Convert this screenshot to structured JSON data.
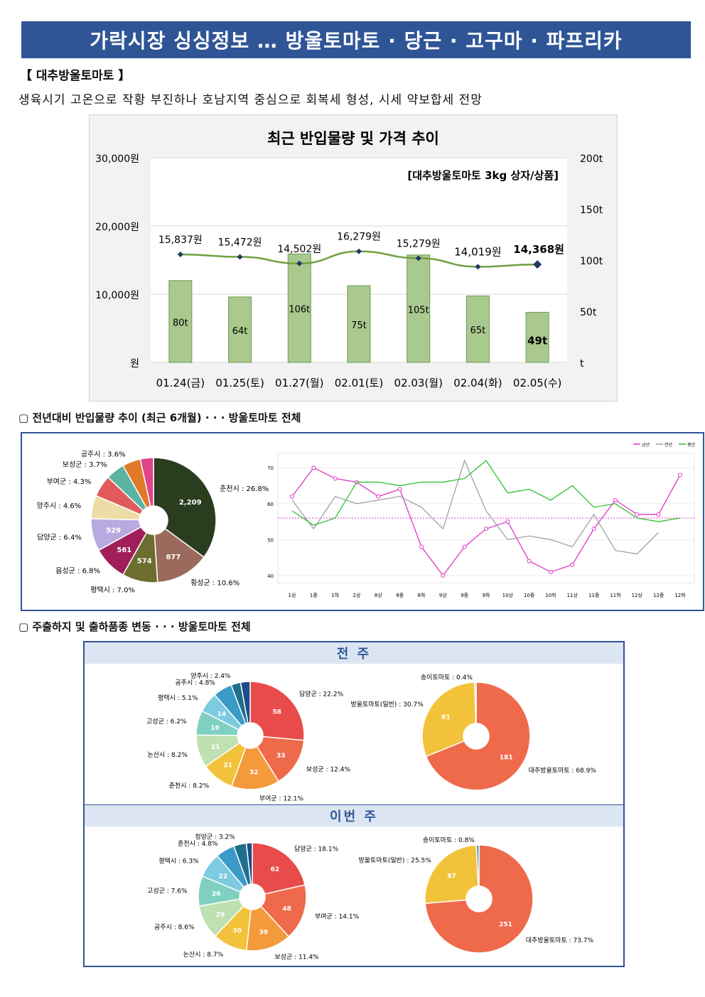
{
  "title": "가락시장 싱싱정보 … 방울토마토 · 당근 · 고구마 · 파프리카",
  "section_header": "【 대추방울토마토 】",
  "summary": "생육시기 고온으로 작황 부진하나 호남지역 중심으로 회복세 형성, 시세 약보합세 전망",
  "sub_header_1": "▢ 전년대비 반입물량 추이 (최근 6개월) · · · 방울토마토 전체",
  "sub_header_2": "▢ 주출하지 및 출하품종 변동 · · · 방울토마토 전체",
  "band_prev": "전 주",
  "band_this": "이번 주",
  "colors": {
    "accent": "#2f5597",
    "bar": "#a9c98f",
    "line": "#70a040",
    "marker": "#1f3864"
  },
  "chart_data": [
    {
      "type": "bar",
      "title": "최근 반입물량 및 가격 추이",
      "annotation": "[대추방울토마토 3kg 상자/상품]",
      "categories": [
        "01.24(금)",
        "01.25(토)",
        "01.27(월)",
        "02.01(토)",
        "02.03(월)",
        "02.04(화)",
        "02.05(수)"
      ],
      "series": [
        {
          "axis": "right",
          "values": [
            80,
            64,
            106,
            75,
            105,
            65,
            49
          ],
          "labels": [
            "80t",
            "64t",
            "106t",
            "75t",
            "105t",
            "65t",
            "49t"
          ]
        },
        {
          "axis": "left",
          "type": "line",
          "values": [
            15837,
            15472,
            14502,
            16279,
            15279,
            14019,
            14368
          ],
          "labels": [
            "15,837원",
            "15,472원",
            "14,502원",
            "16,279원",
            "15,279원",
            "14,019원",
            "14,368원"
          ]
        }
      ],
      "ylim_left": [
        0,
        30000
      ],
      "ylim_right": [
        0,
        200
      ],
      "left_ticks": [
        "30,000원",
        "20,000원",
        "10,000원",
        "원"
      ],
      "right_ticks": [
        "200t",
        "150t",
        "100t",
        "50t",
        "t"
      ]
    },
    {
      "type": "pie",
      "donut": true,
      "slices": [
        {
          "label": "춘천시 : 26.8%",
          "value": 26.8,
          "inner": "2,209",
          "color": "#2b3d1f"
        },
        {
          "label": "횡성군 : 10.6%",
          "value": 10.6,
          "inner": "877",
          "color": "#9b6a5c"
        },
        {
          "label": "평택시 : 7.0%",
          "value": 7.0,
          "inner": "574",
          "color": "#6b6e2f"
        },
        {
          "label": "음성군 : 6.8%",
          "value": 6.8,
          "inner": "561",
          "color": "#a01f5a"
        },
        {
          "label": "담양군 : 6.4%",
          "value": 6.4,
          "inner": "529",
          "color": "#b9a9e0"
        },
        {
          "label": "양주시 : 4.6%",
          "value": 4.6,
          "inner": "",
          "color": "#ecdca6"
        },
        {
          "label": "부여군 : 4.3%",
          "value": 4.3,
          "inner": "",
          "color": "#e05a5a"
        },
        {
          "label": "보성군 : 3.7%",
          "value": 3.7,
          "inner": "",
          "color": "#5ab3a0"
        },
        {
          "label": "공주시 : 3.6%",
          "value": 3.6,
          "inner": "",
          "color": "#e07a2a"
        },
        {
          "label": "",
          "value": 2.6,
          "inner": "",
          "color": "#e0458a"
        }
      ]
    },
    {
      "type": "line",
      "legend": [
        "금년",
        "전년",
        "평년"
      ],
      "categories": [
        "1상",
        "1중",
        "1하",
        "2상",
        "8상",
        "8중",
        "8하",
        "9상",
        "9중",
        "9하",
        "10상",
        "10중",
        "10하",
        "11상",
        "11중",
        "11하",
        "12상",
        "12중",
        "12하"
      ],
      "y_ticks": [
        40,
        50,
        60,
        70
      ],
      "ylim": [
        38,
        74
      ],
      "series": [
        {
          "name": "금년",
          "color": "#e035c8",
          "values": [
            62,
            70,
            67,
            66,
            62,
            64,
            48,
            40,
            48,
            53,
            55,
            44,
            41,
            43,
            53,
            61,
            57,
            57,
            68
          ]
        },
        {
          "name": "전년",
          "color": "#a0a0a0",
          "values": [
            61,
            53,
            62,
            60,
            61,
            62,
            59,
            53,
            72,
            58,
            50,
            51,
            50,
            48,
            57,
            47,
            46,
            52,
            null
          ]
        },
        {
          "name": "평년",
          "color": "#30c030",
          "values": [
            58,
            54,
            56,
            66,
            66,
            65,
            66,
            66,
            67,
            72,
            63,
            64,
            61,
            65,
            59,
            60,
            56,
            55,
            56
          ]
        }
      ],
      "reference_line": 56
    },
    {
      "type": "pie",
      "group": "전 주",
      "donut": true,
      "slices": [
        {
          "label": "담양군 : 22.2%",
          "value": 22.2,
          "inner": "58",
          "color": "#e84c4a"
        },
        {
          "label": "보성군 : 12.4%",
          "value": 12.4,
          "inner": "33",
          "color": "#ef6a4a"
        },
        {
          "label": "부여군 : 12.1%",
          "value": 12.1,
          "inner": "32",
          "color": "#f39a3a"
        },
        {
          "label": "춘천시 : 8.2%",
          "value": 8.2,
          "inner": "21",
          "color": "#f2c33a"
        },
        {
          "label": "논산시 : 8.2%",
          "value": 8.2,
          "inner": "21",
          "color": "#bfe0b0"
        },
        {
          "label": "고성군 : 6.2%",
          "value": 6.2,
          "inner": "16",
          "color": "#7fd0c0"
        },
        {
          "label": "평택시 : 5.1%",
          "value": 5.1,
          "inner": "14",
          "color": "#7ccbe0"
        },
        {
          "label": "공주시 : 4.8%",
          "value": 4.8,
          "inner": "",
          "color": "#3a9ac8"
        },
        {
          "label": "양주시 : 2.4%",
          "value": 2.4,
          "inner": "",
          "color": "#1f6f8b"
        },
        {
          "label": "",
          "value": 2.4,
          "inner": "",
          "color": "#1f4d8b"
        }
      ]
    },
    {
      "type": "pie",
      "group": "전 주",
      "donut": true,
      "slices": [
        {
          "label": "대추방울토마토 : 68.9%",
          "value": 68.9,
          "inner": "181",
          "color": "#ef6a4a"
        },
        {
          "label": "방울토마토(일반) : 30.7%",
          "value": 30.7,
          "inner": "81",
          "color": "#f2c33a"
        },
        {
          "label": "송이토마토 : 0.4%",
          "value": 0.4,
          "inner": "",
          "color": "#3a9ac8"
        }
      ]
    },
    {
      "type": "pie",
      "group": "이번 주",
      "donut": true,
      "slices": [
        {
          "label": "담양군 : 18.1%",
          "value": 18.1,
          "inner": "62",
          "color": "#e84c4a"
        },
        {
          "label": "부여군 : 14.1%",
          "value": 14.1,
          "inner": "48",
          "color": "#ef6a4a"
        },
        {
          "label": "보성군 : 11.4%",
          "value": 11.4,
          "inner": "39",
          "color": "#f39a3a"
        },
        {
          "label": "논산시 : 8.7%",
          "value": 8.7,
          "inner": "30",
          "color": "#f2c33a"
        },
        {
          "label": "공주시 : 8.6%",
          "value": 8.6,
          "inner": "29",
          "color": "#bfe0b0"
        },
        {
          "label": "고성군 : 7.6%",
          "value": 7.6,
          "inner": "26",
          "color": "#7fd0c0"
        },
        {
          "label": "평택시 : 6.3%",
          "value": 6.3,
          "inner": "22",
          "color": "#7ccbe0"
        },
        {
          "label": "춘천시 : 4.8%",
          "value": 4.8,
          "inner": "",
          "color": "#3a9ac8"
        },
        {
          "label": "청양군 : 3.2%",
          "value": 3.2,
          "inner": "",
          "color": "#1f6f8b"
        },
        {
          "label": "",
          "value": 1.5,
          "inner": "",
          "color": "#1f4d8b"
        }
      ]
    },
    {
      "type": "pie",
      "group": "이번 주",
      "donut": true,
      "slices": [
        {
          "label": "대추방울토마토 : 73.7%",
          "value": 73.7,
          "inner": "251",
          "color": "#ef6a4a"
        },
        {
          "label": "방울토마토(일반) : 25.5%",
          "value": 25.5,
          "inner": "87",
          "color": "#f2c33a"
        },
        {
          "label": "송이토마토 : 0.8%",
          "value": 0.8,
          "inner": "",
          "color": "#3a9ac8"
        }
      ]
    }
  ]
}
